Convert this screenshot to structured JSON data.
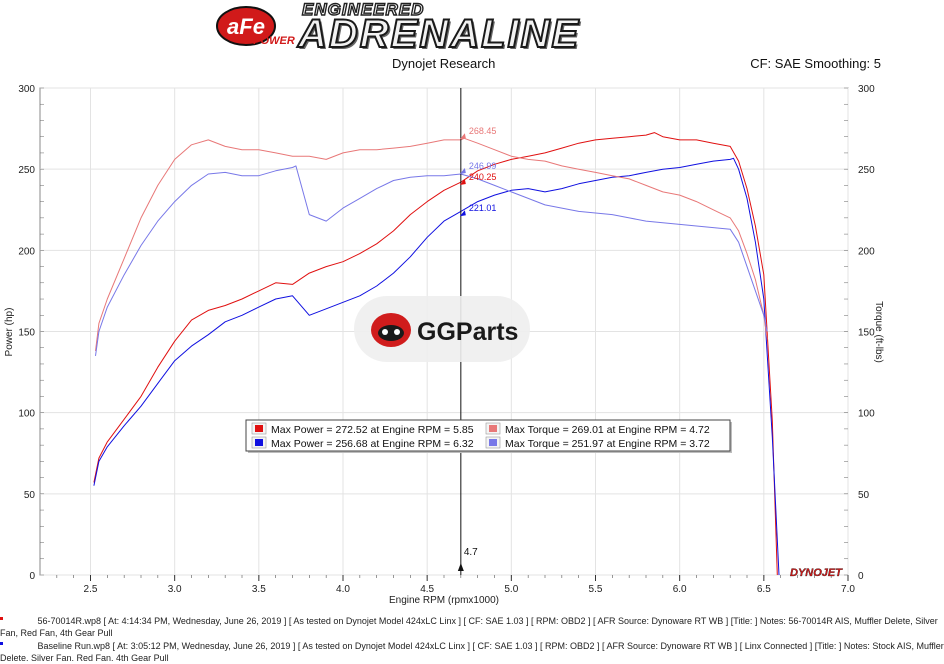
{
  "header": {
    "brand_badge": "aFe",
    "brand_badge_sub": "POWER",
    "brand_tag": "ENGINEERED",
    "brand_name": "ADRENALINE",
    "source": "Dynojet Research",
    "settings": "CF: SAE Smoothing: 5",
    "badge_color": "#d11a1a"
  },
  "chart_data": {
    "type": "line",
    "xlabel": "Engine RPM (rpmx1000)",
    "ylabel_left": "Power (hp)",
    "ylabel_right": "Torque (ft-lbs)",
    "xlim": [
      2.2,
      7.0
    ],
    "ylim": [
      0,
      300
    ],
    "x_ticks": [
      2.5,
      3.0,
      3.5,
      4.0,
      4.5,
      5.0,
      5.5,
      6.0,
      6.5,
      7.0
    ],
    "y_ticks": [
      0,
      50,
      100,
      150,
      200,
      250,
      300
    ],
    "grid": true,
    "cursor": {
      "x": 4.7,
      "label": "4.7"
    },
    "cursor_readouts": [
      {
        "value": "268.45",
        "y": 268.45,
        "color": "#e87878"
      },
      {
        "value": "246.99",
        "y": 246.99,
        "color": "#7878e8"
      },
      {
        "value": "240.25",
        "y": 240.25,
        "color": "#e01010"
      },
      {
        "value": "221.01",
        "y": 221.01,
        "color": "#1010e0"
      }
    ],
    "series": [
      {
        "kind": "power",
        "color": "#e01010",
        "x": [
          2.52,
          2.55,
          2.6,
          2.7,
          2.8,
          2.9,
          3.0,
          3.1,
          3.2,
          3.3,
          3.4,
          3.5,
          3.6,
          3.7,
          3.8,
          3.9,
          4.0,
          4.1,
          4.2,
          4.3,
          4.4,
          4.5,
          4.6,
          4.7,
          4.8,
          4.9,
          5.0,
          5.1,
          5.2,
          5.3,
          5.4,
          5.5,
          5.6,
          5.7,
          5.8,
          5.85,
          5.9,
          6.0,
          6.1,
          6.2,
          6.3,
          6.35,
          6.4,
          6.45,
          6.5,
          6.55,
          6.58
        ],
        "y": [
          57,
          72,
          82,
          96,
          110,
          128,
          144,
          157,
          163,
          166,
          170,
          175,
          180,
          179,
          186,
          190,
          193,
          198,
          204,
          212,
          222,
          230,
          237,
          242,
          249,
          253,
          256,
          258,
          260,
          263,
          266,
          268,
          269,
          270,
          271,
          272.5,
          270,
          268,
          268,
          266,
          264,
          255,
          238,
          215,
          185,
          95,
          0
        ]
      },
      {
        "kind": "power",
        "color": "#1010e0",
        "x": [
          2.52,
          2.55,
          2.6,
          2.7,
          2.8,
          2.9,
          3.0,
          3.1,
          3.2,
          3.3,
          3.4,
          3.5,
          3.6,
          3.7,
          3.8,
          3.9,
          4.0,
          4.1,
          4.2,
          4.3,
          4.4,
          4.5,
          4.6,
          4.7,
          4.8,
          4.9,
          5.0,
          5.1,
          5.2,
          5.3,
          5.4,
          5.5,
          5.6,
          5.7,
          5.8,
          5.9,
          6.0,
          6.1,
          6.2,
          6.3,
          6.32,
          6.35,
          6.4,
          6.45,
          6.5,
          6.55,
          6.59
        ],
        "y": [
          55,
          70,
          79,
          92,
          104,
          118,
          132,
          141,
          148,
          156,
          160,
          165,
          170,
          172,
          160,
          164,
          168,
          172,
          178,
          186,
          196,
          208,
          218,
          224,
          230,
          234,
          237,
          238,
          236,
          238,
          241,
          243,
          245,
          246,
          248,
          250,
          251,
          253,
          255,
          256,
          256.7,
          250,
          232,
          205,
          170,
          85,
          0
        ]
      },
      {
        "kind": "torque",
        "color": "#e87878",
        "x": [
          2.53,
          2.55,
          2.6,
          2.7,
          2.8,
          2.9,
          3.0,
          3.1,
          3.2,
          3.3,
          3.4,
          3.5,
          3.6,
          3.7,
          3.8,
          3.9,
          4.0,
          4.1,
          4.2,
          4.3,
          4.4,
          4.5,
          4.6,
          4.7,
          4.72,
          4.8,
          4.9,
          5.0,
          5.1,
          5.2,
          5.3,
          5.4,
          5.5,
          5.6,
          5.7,
          5.8,
          5.9,
          6.0,
          6.1,
          6.2,
          6.3,
          6.35,
          6.4,
          6.45,
          6.5,
          6.52
        ],
        "y": [
          138,
          155,
          170,
          195,
          220,
          240,
          256,
          265,
          268,
          264,
          262,
          262,
          260,
          258,
          258,
          256,
          260,
          262,
          262,
          263,
          264,
          266,
          268,
          268,
          269,
          266,
          262,
          258,
          256,
          255,
          252,
          250,
          248,
          246,
          244,
          240,
          236,
          234,
          230,
          225,
          220,
          212,
          198,
          182,
          160,
          145
        ]
      },
      {
        "kind": "torque",
        "color": "#7878e8",
        "x": [
          2.53,
          2.55,
          2.6,
          2.7,
          2.8,
          2.9,
          3.0,
          3.1,
          3.2,
          3.3,
          3.4,
          3.5,
          3.6,
          3.7,
          3.72,
          3.8,
          3.9,
          4.0,
          4.1,
          4.2,
          4.3,
          4.4,
          4.5,
          4.6,
          4.7,
          4.8,
          4.9,
          5.0,
          5.1,
          5.2,
          5.3,
          5.4,
          5.5,
          5.6,
          5.7,
          5.8,
          5.9,
          6.0,
          6.1,
          6.2,
          6.3,
          6.35,
          6.4,
          6.45,
          6.5,
          6.52
        ],
        "y": [
          135,
          150,
          165,
          185,
          203,
          218,
          230,
          240,
          247,
          248,
          246,
          246,
          249,
          251,
          252,
          222,
          218,
          226,
          232,
          238,
          243,
          245,
          246,
          246,
          247,
          244,
          240,
          236,
          232,
          228,
          226,
          224,
          223,
          222,
          220,
          218,
          217,
          216,
          215,
          214,
          213,
          205,
          190,
          175,
          160,
          150
        ]
      }
    ],
    "legend": {
      "placement": "center",
      "entries": [
        {
          "color": "#e01010",
          "text": "Max Power = 272.52 at Engine RPM = 5.85"
        },
        {
          "color": "#e87878",
          "text": "Max Torque = 269.01 at Engine RPM = 4.72"
        },
        {
          "color": "#1010e0",
          "text": "Max Power = 256.68 at Engine RPM = 6.32"
        },
        {
          "color": "#7878e8",
          "text": "Max Torque = 251.97 at Engine RPM = 3.72"
        }
      ]
    },
    "watermark": "GGParts",
    "logo": "DYNOJET"
  },
  "footer": {
    "run1": "56-70014R.wp8 [ At: 4:14:34 PM, Wednesday, June 26, 2019 ] [ As tested on Dynojet Model 424xLC Linx ] [ CF: SAE 1.03 ] [ RPM: OBD2 ] [ AFR Source: Dynoware RT WB ] [Title: ]  Notes: 56-70014R AIS, Muffler Delete, Silver",
    "run1_cont": "Fan, Red Fan, 4th Gear Pull",
    "run2": "Baseline Run.wp8 [ At: 3:05:12 PM, Wednesday, June 26, 2019 ] [ As tested on Dynojet Model 424xLC Linx ] [ CF: SAE 1.03 ] [ RPM: OBD2 ] [ AFR Source: Dynoware RT WB ] [ Linx Connected ] [Title: ]  Notes: Stock AIS, Muffler",
    "run2_cont": "Delete. Silver Fan. Red Fan. 4th Gear Pull",
    "run1_color": "#e01010",
    "run2_color": "#1010e0"
  }
}
